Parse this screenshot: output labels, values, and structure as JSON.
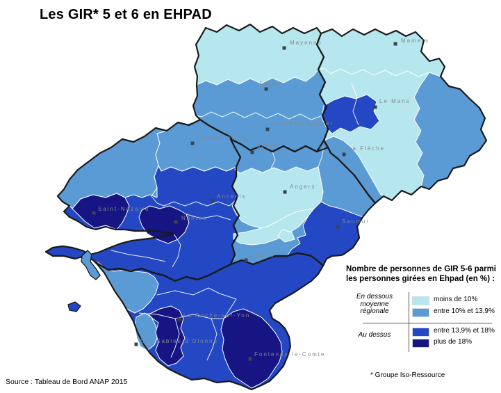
{
  "title": "Les GIR* 5 et 6 en EHPAD",
  "source": "Source : Tableau de Bord ANAP 2015",
  "footnote": "* Groupe Iso-Ressource",
  "legend": {
    "title_line1": "Nombre de personnes de GIR 5-6 parmi",
    "title_line2": "les personnes girées en Ehpad (en %) :",
    "below_group": {
      "lines": [
        "En dessous",
        "moyenne",
        "régionale"
      ]
    },
    "above_group": {
      "label": "Au dessus"
    },
    "classes": [
      {
        "key": "c1",
        "label": "moins de 10%",
        "color": "#b6e7ee",
        "group": "below"
      },
      {
        "key": "c2",
        "label": "entre 10% et 13,9%",
        "color": "#5b9bd5",
        "group": "below"
      },
      {
        "key": "c3",
        "label": "entre 13,9% et 18%",
        "color": "#2447c4",
        "group": "above"
      },
      {
        "key": "c4",
        "label": "plus de 18%",
        "color": "#171583",
        "group": "above"
      }
    ]
  },
  "map": {
    "border_color": "#1a1a1a",
    "subdivision_border_color": "#ffffff",
    "marker_color": "#39454c",
    "city_label_color": "#83898c",
    "cities": [
      {
        "name": "Mayenne",
        "marker": [
          409,
          69
        ],
        "label": [
          417,
          64
        ]
      },
      {
        "name": "Mamers",
        "marker": [
          569,
          63
        ],
        "label": [
          577,
          61
        ]
      },
      {
        "name": "Laval",
        "marker": [
          383,
          128
        ],
        "label": [
          374,
          122
        ]
      },
      {
        "name": "Le Mans",
        "marker": [
          540,
          154
        ],
        "label": [
          546,
          148
        ]
      },
      {
        "name": "Château-Gontier",
        "marker": [
          385,
          186
        ],
        "label": [
          391,
          180
        ]
      },
      {
        "name": "La Flèche",
        "marker": [
          495,
          222
        ],
        "label": [
          501,
          216
        ]
      },
      {
        "name": "Châteaubriant",
        "marker": [
          277,
          206
        ],
        "label": [
          283,
          201
        ]
      },
      {
        "name": "Segré",
        "marker": [
          363,
          219
        ],
        "label": [
          369,
          212
        ]
      },
      {
        "name": "Angers",
        "marker": [
          410,
          276
        ],
        "label": [
          417,
          271
        ]
      },
      {
        "name": "Ancenis",
        "marker": [
          306,
          289
        ],
        "label": [
          312,
          285
        ]
      },
      {
        "name": "Saumur",
        "marker": [
          486,
          326
        ],
        "label": [
          492,
          321
        ]
      },
      {
        "name": "Saint-Nazaire",
        "marker": [
          135,
          306
        ],
        "label": [
          141,
          303
        ]
      },
      {
        "name": "Nantes",
        "marker": [
          253,
          319
        ],
        "label": [
          261,
          316
        ]
      },
      {
        "name": "Cholet",
        "marker": [
          354,
          374
        ],
        "label": [
          360,
          370
        ]
      },
      {
        "name": "La Roche-sur-Yon",
        "marker": [
          258,
          459
        ],
        "label": [
          264,
          456
        ]
      },
      {
        "name": "Les Sables-d'Olonne",
        "marker": [
          196,
          495
        ],
        "label": [
          202,
          493
        ]
      },
      {
        "name": "Fontenay-le-Comte",
        "marker": [
          360,
          516
        ],
        "label": [
          366,
          512
        ]
      }
    ]
  }
}
